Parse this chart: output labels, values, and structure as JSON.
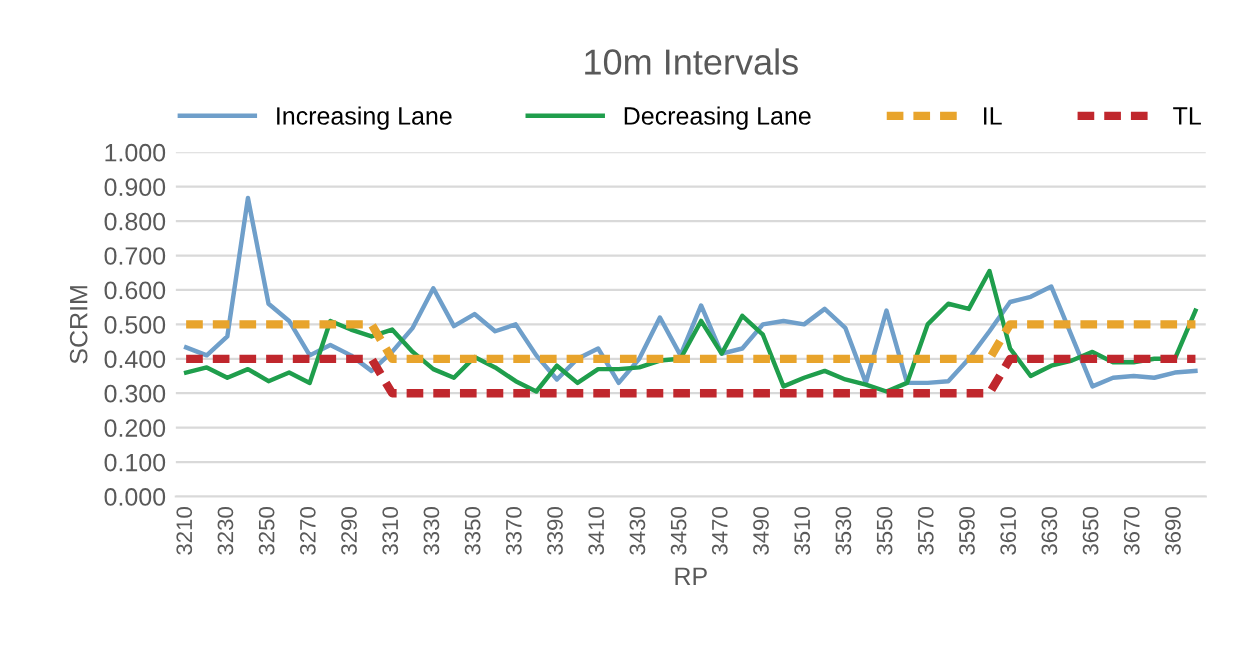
{
  "chart_data": {
    "type": "line",
    "title": "10m Intervals",
    "xlabel": "RP",
    "ylabel": "SCRIM",
    "categories": [
      "3210",
      null,
      "3230",
      null,
      "3250",
      null,
      "3270",
      null,
      "3290",
      null,
      "3310",
      null,
      "3330",
      null,
      "3350",
      null,
      "3370",
      null,
      "3390",
      null,
      "3410",
      null,
      "3430",
      null,
      "3450",
      null,
      "3470",
      null,
      "3490",
      null,
      "3510",
      null,
      "3530",
      null,
      "3550",
      null,
      "3570",
      null,
      "3590",
      null,
      "3610",
      null,
      "3630",
      null,
      "3650",
      null,
      "3670",
      null,
      "3690",
      null
    ],
    "series": [
      {
        "name": "Increasing Lane",
        "color": "#6f9fca",
        "line_style": "solid",
        "values": [
          0.433,
          0.41,
          0.465,
          0.867,
          0.56,
          0.51,
          0.41,
          0.44,
          0.41,
          0.365,
          0.42,
          0.49,
          0.605,
          0.495,
          0.53,
          0.48,
          0.5,
          0.41,
          0.34,
          0.4,
          0.43,
          0.33,
          0.4,
          0.52,
          0.41,
          0.555,
          0.415,
          0.43,
          0.5,
          0.51,
          0.5,
          0.545,
          0.49,
          0.33,
          0.54,
          0.33,
          0.33,
          0.335,
          0.4,
          0.48,
          0.565,
          0.58,
          0.61,
          0.465,
          0.32,
          0.345,
          0.35,
          0.345,
          0.36,
          0.365
        ]
      },
      {
        "name": "Decreasing Lane",
        "color": "#1f9e4c",
        "line_style": "solid",
        "values": [
          0.36,
          0.375,
          0.345,
          0.37,
          0.335,
          0.36,
          0.33,
          0.51,
          0.485,
          0.465,
          0.485,
          0.42,
          0.37,
          0.345,
          0.405,
          0.375,
          0.335,
          0.305,
          0.38,
          0.33,
          0.37,
          0.37,
          0.375,
          0.395,
          0.4,
          0.51,
          0.415,
          0.525,
          0.47,
          0.32,
          0.345,
          0.365,
          0.34,
          0.325,
          0.305,
          0.33,
          0.5,
          0.56,
          0.545,
          0.655,
          0.43,
          0.35,
          0.38,
          0.395,
          0.42,
          0.39,
          0.39,
          0.4,
          0.4,
          0.54
        ]
      },
      {
        "name": "IL",
        "color": "#e8a42c",
        "line_style": "dashed",
        "values": [
          0.5,
          0.5,
          0.5,
          0.5,
          0.5,
          0.5,
          0.5,
          0.5,
          0.5,
          0.5,
          0.4,
          0.4,
          0.4,
          0.4,
          0.4,
          0.4,
          0.4,
          0.4,
          0.4,
          0.4,
          0.4,
          0.4,
          0.4,
          0.4,
          0.4,
          0.4,
          0.4,
          0.4,
          0.4,
          0.4,
          0.4,
          0.4,
          0.4,
          0.4,
          0.4,
          0.4,
          0.4,
          0.4,
          0.4,
          0.4,
          0.5,
          0.5,
          0.5,
          0.5,
          0.5,
          0.5,
          0.5,
          0.5,
          0.5,
          0.5
        ]
      },
      {
        "name": "TL",
        "color": "#c0272d",
        "line_style": "dashed",
        "values": [
          0.4,
          0.4,
          0.4,
          0.4,
          0.4,
          0.4,
          0.4,
          0.4,
          0.4,
          0.4,
          0.3,
          0.3,
          0.3,
          0.3,
          0.3,
          0.3,
          0.3,
          0.3,
          0.3,
          0.3,
          0.3,
          0.3,
          0.3,
          0.3,
          0.3,
          0.3,
          0.3,
          0.3,
          0.3,
          0.3,
          0.3,
          0.3,
          0.3,
          0.3,
          0.3,
          0.3,
          0.3,
          0.3,
          0.3,
          0.3,
          0.4,
          0.4,
          0.4,
          0.4,
          0.4,
          0.4,
          0.4,
          0.4,
          0.4,
          0.4
        ]
      }
    ],
    "ylim": [
      0,
      1
    ],
    "yticks": [
      {
        "value": 0,
        "label": "0.000"
      },
      {
        "value": 0.1,
        "label": "0.100"
      },
      {
        "value": 0.2,
        "label": "0.200"
      },
      {
        "value": 0.3,
        "label": "0.300"
      },
      {
        "value": 0.4,
        "label": "0.400"
      },
      {
        "value": 0.5,
        "label": "0.500"
      },
      {
        "value": 0.6,
        "label": "0.600"
      },
      {
        "value": 0.7,
        "label": "0.700"
      },
      {
        "value": 0.8,
        "label": "0.800"
      },
      {
        "value": 0.9,
        "label": "0.900"
      },
      {
        "value": 1,
        "label": "1.000"
      }
    ],
    "grid": "y",
    "legend": "top",
    "marker": "none"
  }
}
